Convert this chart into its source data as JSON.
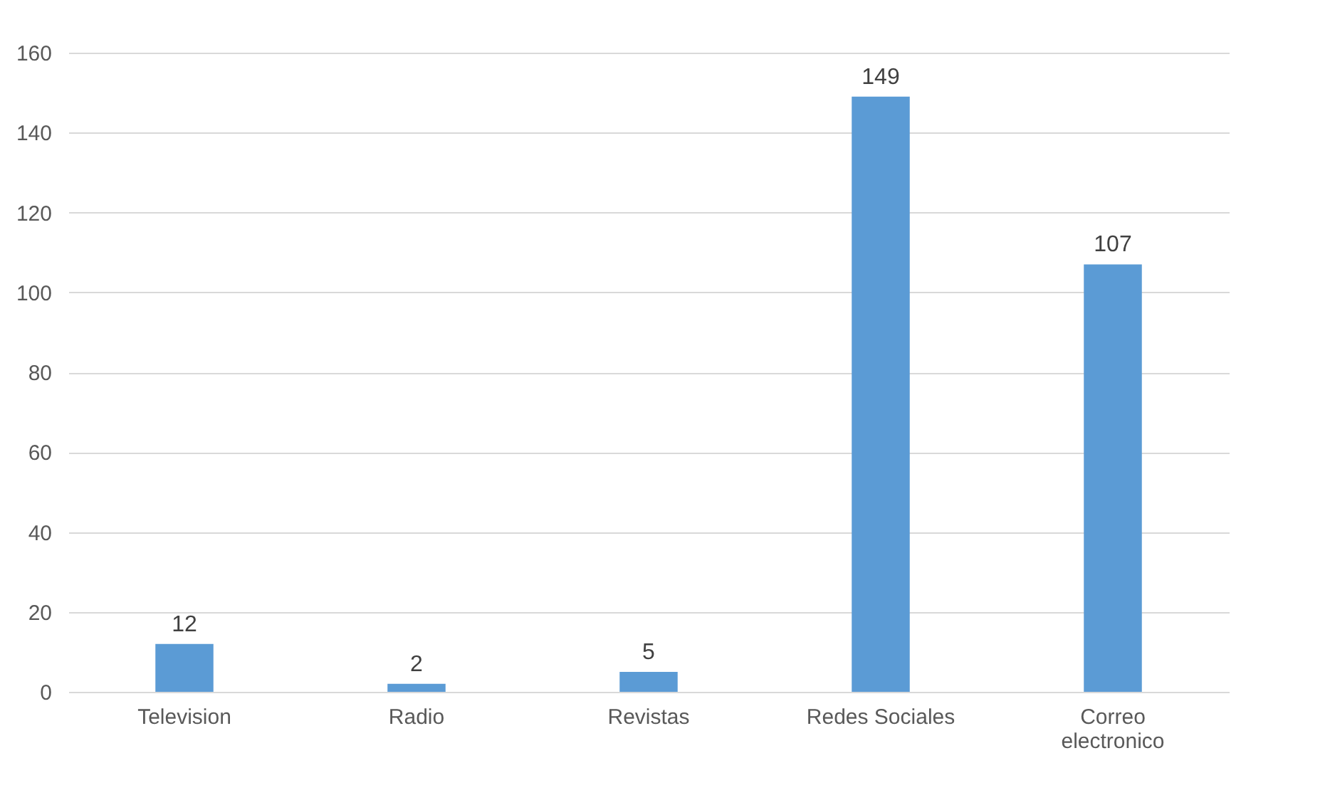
{
  "chart_data": {
    "type": "bar",
    "categories": [
      "Television",
      "Radio",
      "Revistas",
      "Redes Sociales",
      "Correo electronico"
    ],
    "values": [
      12,
      2,
      5,
      149,
      107
    ],
    "color": "#5b9bd5",
    "ylim": [
      0,
      160
    ],
    "yticks": [
      0,
      20,
      40,
      60,
      80,
      100,
      120,
      140,
      160
    ],
    "grid": "y",
    "data_labels": true
  }
}
